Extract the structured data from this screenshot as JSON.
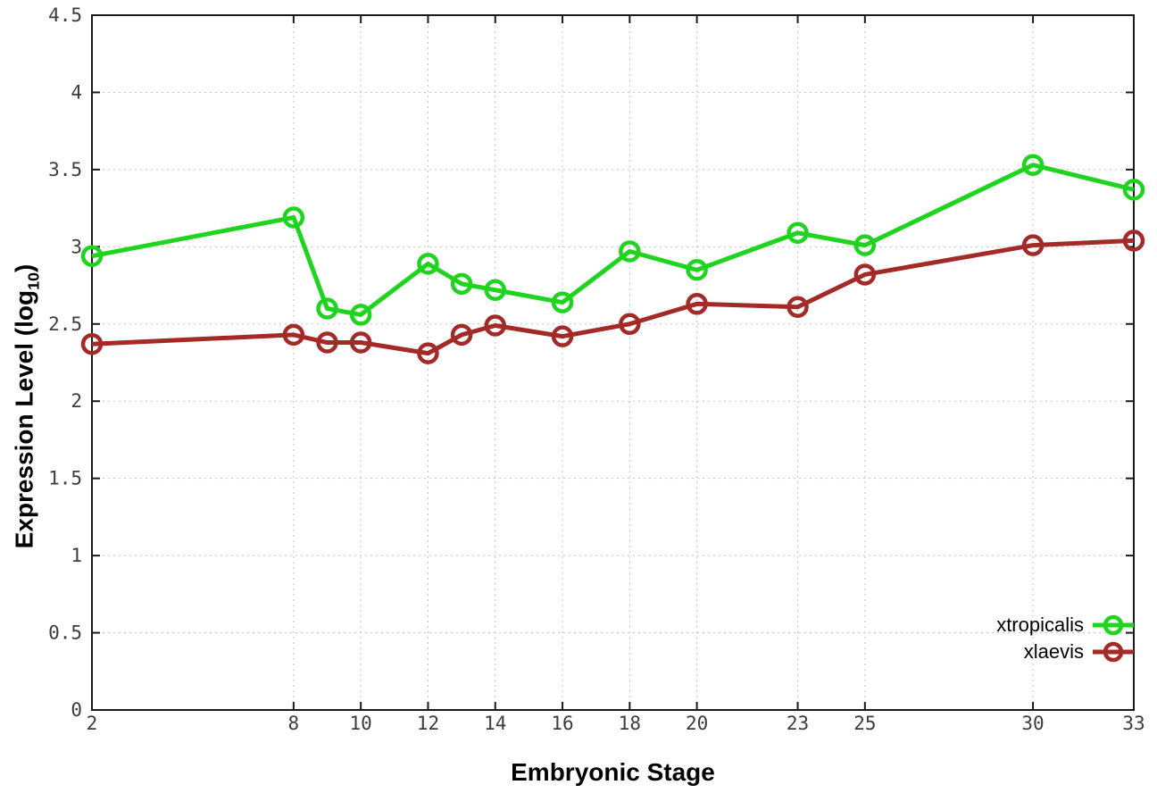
{
  "chart_data": {
    "type": "line",
    "title": "",
    "xlabel": "Embryonic Stage",
    "ylabel": {
      "prefix": "Expression Level (log",
      "subscript": "10",
      "suffix": ")"
    },
    "x": [
      2,
      8,
      9,
      10,
      12,
      13,
      14,
      16,
      18,
      20,
      23,
      25,
      30,
      33
    ],
    "series": [
      {
        "name": "xtropicalis",
        "color": "#1fd41f",
        "values": [
          2.94,
          3.19,
          2.6,
          2.56,
          2.89,
          2.76,
          2.72,
          2.64,
          2.97,
          2.85,
          3.09,
          3.01,
          3.53,
          3.37
        ]
      },
      {
        "name": "xlaevis",
        "color": "#a42a28",
        "values": [
          2.37,
          2.43,
          2.38,
          2.38,
          2.31,
          2.43,
          2.49,
          2.42,
          2.5,
          2.63,
          2.61,
          2.82,
          3.01,
          3.04
        ]
      }
    ],
    "x_tick_values": [
      2,
      8,
      10,
      12,
      14,
      16,
      18,
      20,
      23,
      25,
      30,
      33
    ],
    "x_tick_labels": [
      "2",
      "8",
      "10",
      "12",
      "14",
      "16",
      "18",
      "20",
      "23",
      "25",
      "30",
      "33"
    ],
    "y_tick_values": [
      0,
      0.5,
      1,
      1.5,
      2,
      2.5,
      3,
      3.5,
      4,
      4.5
    ],
    "y_tick_labels": [
      "0",
      "0.5",
      "1",
      "1.5",
      "2",
      "2.5",
      "3",
      "3.5",
      "4",
      "4.5"
    ],
    "xlim": [
      2,
      33
    ],
    "ylim": [
      0,
      4.5
    ],
    "grid": true,
    "legend_position": "bottom-right",
    "colors": {
      "background": "#ffffff",
      "axis": "#1a1a1a",
      "grid": "#c4c4c4",
      "tick_label": "#3c3c3c"
    }
  }
}
